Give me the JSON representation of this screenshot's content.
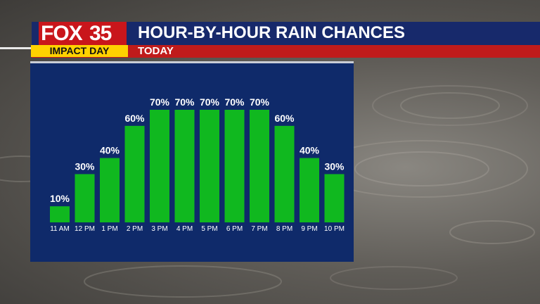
{
  "header": {
    "logo_brand": "FOX",
    "logo_number": "35",
    "badge": "IMPACT DAY",
    "title": "HOUR-BY-HOUR RAIN CHANCES",
    "subtitle": "TODAY"
  },
  "colors": {
    "bar": "#10b81f",
    "panel": "#0f2a6a",
    "title_bar": "#17296b",
    "sub_bar": "#c01b1b",
    "badge": "#ffd200",
    "logo": "#c9161b"
  },
  "chart_data": {
    "type": "bar",
    "title": "",
    "xlabel": "",
    "ylabel": "",
    "categories": [
      "11 AM",
      "12 PM",
      "1 PM",
      "2 PM",
      "3 PM",
      "4 PM",
      "5 PM",
      "6 PM",
      "7 PM",
      "8 PM",
      "9 PM",
      "10 PM"
    ],
    "values": [
      10,
      30,
      40,
      60,
      70,
      70,
      70,
      70,
      70,
      60,
      40,
      30
    ],
    "value_labels": [
      "10%",
      "30%",
      "40%",
      "60%",
      "70%",
      "70%",
      "70%",
      "70%",
      "70%",
      "60%",
      "40%",
      "30%"
    ],
    "ylim": [
      0,
      70
    ],
    "grid": false,
    "legend": "none"
  }
}
